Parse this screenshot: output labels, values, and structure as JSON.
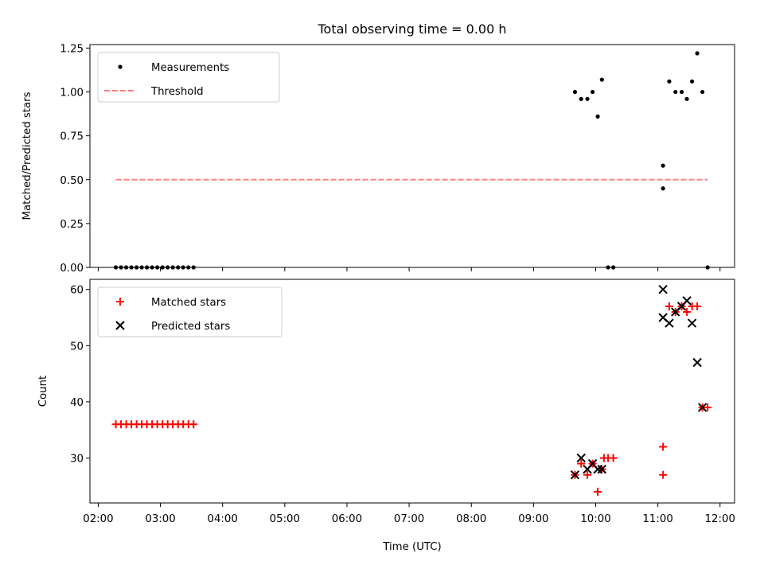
{
  "chart_data": {
    "type": "scatter",
    "title": "Total observing time = 0.00 h",
    "xlabel": "Time (UTC)",
    "x_ticks": [
      "02:00",
      "03:00",
      "04:00",
      "05:00",
      "06:00",
      "07:00",
      "08:00",
      "09:00",
      "10:00",
      "11:00",
      "12:00"
    ],
    "xlim": [
      "01:52",
      "12:14"
    ],
    "panels": [
      {
        "ylabel": "Matched/Predicted stars",
        "ylim": [
          0,
          1.27
        ],
        "y_ticks": [
          "0.00",
          "0.25",
          "0.50",
          "0.75",
          "1.00",
          "1.25"
        ],
        "legend": "top-left",
        "series": [
          {
            "name": "Measurements",
            "marker": "dot",
            "color": "#000000",
            "points": [
              [
                "02:17",
                0
              ],
              [
                "02:22",
                0
              ],
              [
                "02:27",
                0
              ],
              [
                "02:32",
                0
              ],
              [
                "02:37",
                0
              ],
              [
                "02:42",
                0
              ],
              [
                "02:47",
                0
              ],
              [
                "02:52",
                0
              ],
              [
                "02:57",
                0
              ],
              [
                "03:02",
                0
              ],
              [
                "03:07",
                0
              ],
              [
                "03:12",
                0
              ],
              [
                "03:17",
                0
              ],
              [
                "03:22",
                0
              ],
              [
                "03:27",
                0
              ],
              [
                "03:32",
                0
              ],
              [
                "09:40",
                1.0
              ],
              [
                "09:46",
                0.96
              ],
              [
                "09:52",
                0.96
              ],
              [
                "09:57",
                1.0
              ],
              [
                "10:02",
                0.86
              ],
              [
                "10:06",
                1.07
              ],
              [
                "10:12",
                0
              ],
              [
                "10:17",
                0
              ],
              [
                "11:05",
                0.58
              ],
              [
                "11:05",
                0.45
              ],
              [
                "11:11",
                1.06
              ],
              [
                "11:17",
                1.0
              ],
              [
                "11:23",
                1.0
              ],
              [
                "11:28",
                0.96
              ],
              [
                "11:33",
                1.06
              ],
              [
                "11:38",
                1.22
              ],
              [
                "11:43",
                1.0
              ],
              [
                "11:48",
                0
              ]
            ]
          },
          {
            "name": "Threshold",
            "marker": "dashed-line",
            "color": "#ff7f7f",
            "points": [
              [
                "02:17",
                0.5
              ],
              [
                "11:48",
                0.5
              ]
            ]
          }
        ]
      },
      {
        "ylabel": "Count",
        "ylim": [
          22,
          61.8
        ],
        "y_ticks": [
          "30",
          "40",
          "50",
          "60"
        ],
        "legend": "top-left",
        "series": [
          {
            "name": "Matched stars",
            "marker": "plus",
            "color": "#ff0000",
            "points": [
              [
                "02:17",
                36
              ],
              [
                "02:22",
                36
              ],
              [
                "02:27",
                36
              ],
              [
                "02:32",
                36
              ],
              [
                "02:37",
                36
              ],
              [
                "02:42",
                36
              ],
              [
                "02:47",
                36
              ],
              [
                "02:52",
                36
              ],
              [
                "02:57",
                36
              ],
              [
                "03:02",
                36
              ],
              [
                "03:07",
                36
              ],
              [
                "03:12",
                36
              ],
              [
                "03:17",
                36
              ],
              [
                "03:22",
                36
              ],
              [
                "03:27",
                36
              ],
              [
                "03:32",
                36
              ],
              [
                "09:40",
                27
              ],
              [
                "09:46",
                29
              ],
              [
                "09:52",
                27
              ],
              [
                "09:57",
                29
              ],
              [
                "10:02",
                24
              ],
              [
                "10:06",
                28
              ],
              [
                "10:08",
                30
              ],
              [
                "10:12",
                30
              ],
              [
                "10:17",
                30
              ],
              [
                "11:05",
                32
              ],
              [
                "11:05",
                27
              ],
              [
                "11:11",
                57
              ],
              [
                "11:17",
                56
              ],
              [
                "11:23",
                57
              ],
              [
                "11:28",
                56
              ],
              [
                "11:33",
                57
              ],
              [
                "11:38",
                57
              ],
              [
                "11:43",
                39
              ],
              [
                "11:48",
                39
              ]
            ]
          },
          {
            "name": "Predicted stars",
            "marker": "x",
            "color": "#000000",
            "points": [
              [
                "09:40",
                27
              ],
              [
                "09:46",
                30
              ],
              [
                "09:52",
                28
              ],
              [
                "09:57",
                29
              ],
              [
                "10:02",
                28
              ],
              [
                "10:06",
                28
              ],
              [
                "11:05",
                60
              ],
              [
                "11:05",
                55
              ],
              [
                "11:11",
                54
              ],
              [
                "11:17",
                56
              ],
              [
                "11:23",
                57
              ],
              [
                "11:28",
                58
              ],
              [
                "11:33",
                54
              ],
              [
                "11:38",
                47
              ],
              [
                "11:43",
                39
              ]
            ]
          }
        ]
      }
    ]
  }
}
